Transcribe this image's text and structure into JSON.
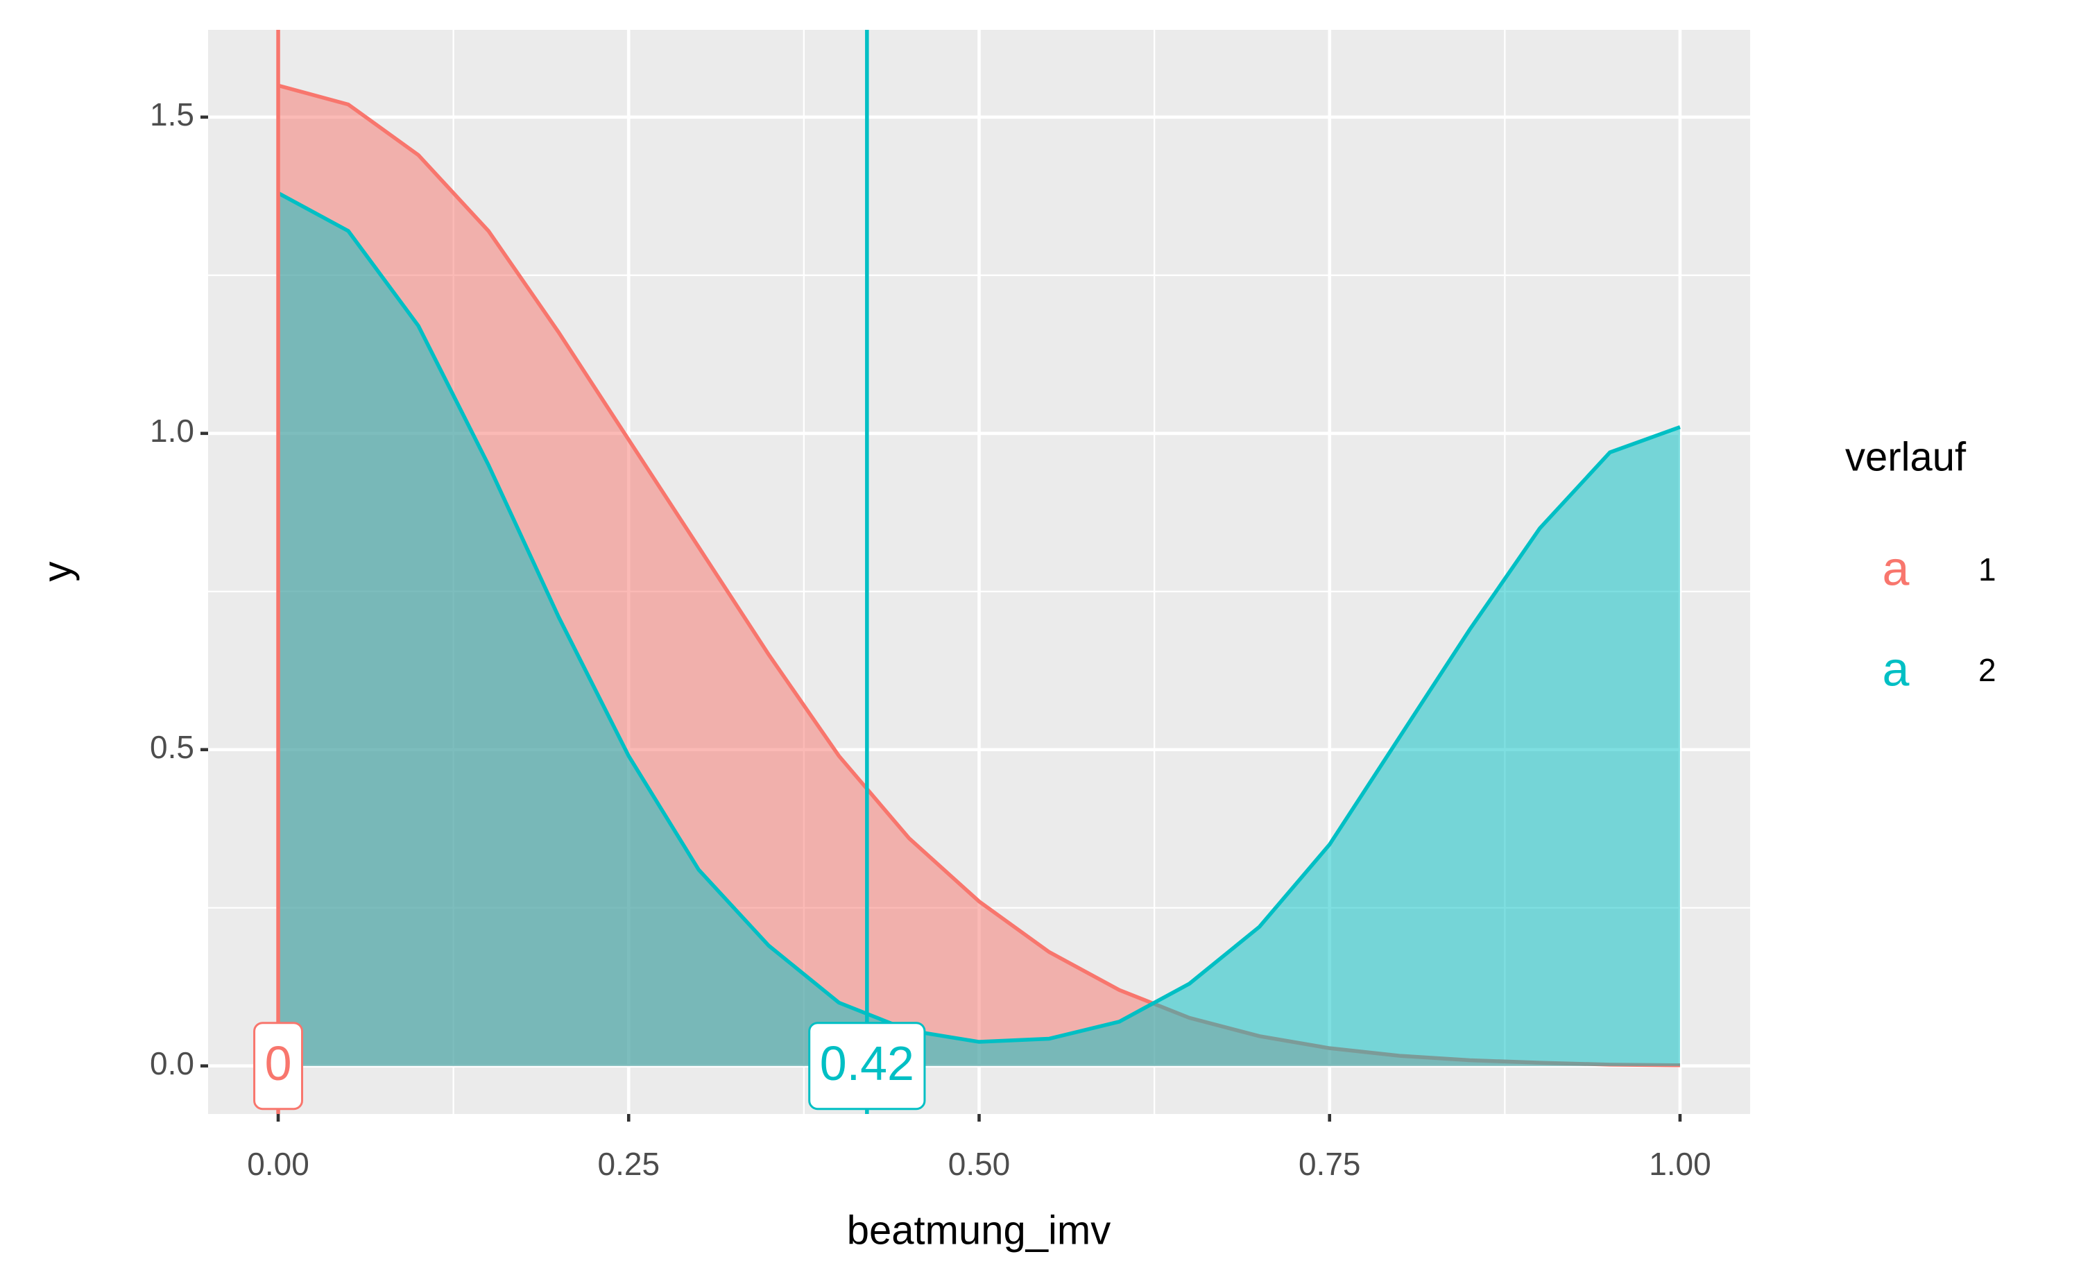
{
  "chart_data": {
    "type": "area",
    "x_label": "beatmung_imv",
    "y_label": "y",
    "x": [
      0,
      0.05,
      0.1,
      0.15,
      0.2,
      0.25,
      0.3,
      0.35,
      0.4,
      0.45,
      0.5,
      0.55,
      0.6,
      0.65,
      0.7,
      0.75,
      0.8,
      0.85,
      0.9,
      0.95,
      1
    ],
    "series": [
      {
        "name": "1",
        "color": "#F8766D",
        "values": [
          1.55,
          1.52,
          1.44,
          1.32,
          1.16,
          0.99,
          0.82,
          0.65,
          0.49,
          0.36,
          0.26,
          0.18,
          0.12,
          0.076,
          0.047,
          0.028,
          0.016,
          0.009,
          0.005,
          0.002,
          0.001
        ]
      },
      {
        "name": "2",
        "color": "#00BFC4",
        "values": [
          1.38,
          1.32,
          1.17,
          0.95,
          0.71,
          0.49,
          0.31,
          0.19,
          0.1,
          0.056,
          0.038,
          0.043,
          0.07,
          0.13,
          0.22,
          0.35,
          0.52,
          0.69,
          0.85,
          0.97,
          1.01
        ]
      }
    ],
    "vlines": [
      {
        "x": 0,
        "color": "#F8766D"
      },
      {
        "x": 0.42,
        "color": "#00BFC4"
      }
    ],
    "legend_title": "verlauf",
    "legend_glyph": "a",
    "xlim": [
      -0.05,
      1.05
    ],
    "ylim": [
      -0.076,
      1.638
    ],
    "xticks": [
      {
        "value": 0,
        "label": "0.00"
      },
      {
        "value": 0.25,
        "label": "0.25"
      },
      {
        "value": 0.5,
        "label": "0.50"
      },
      {
        "value": 0.75,
        "label": "0.75"
      },
      {
        "value": 1,
        "label": "1.00"
      }
    ],
    "yticks": [
      {
        "value": 0,
        "label": "0.0"
      },
      {
        "value": 0.5,
        "label": "0.5"
      },
      {
        "value": 1,
        "label": "1.0"
      },
      {
        "value": 1.5,
        "label": "1.5"
      }
    ],
    "x_minor_grid": [
      0.125,
      0.375,
      0.625,
      0.875
    ],
    "y_minor_grid": [
      0.25,
      0.75,
      1.25
    ],
    "grid": true
  }
}
